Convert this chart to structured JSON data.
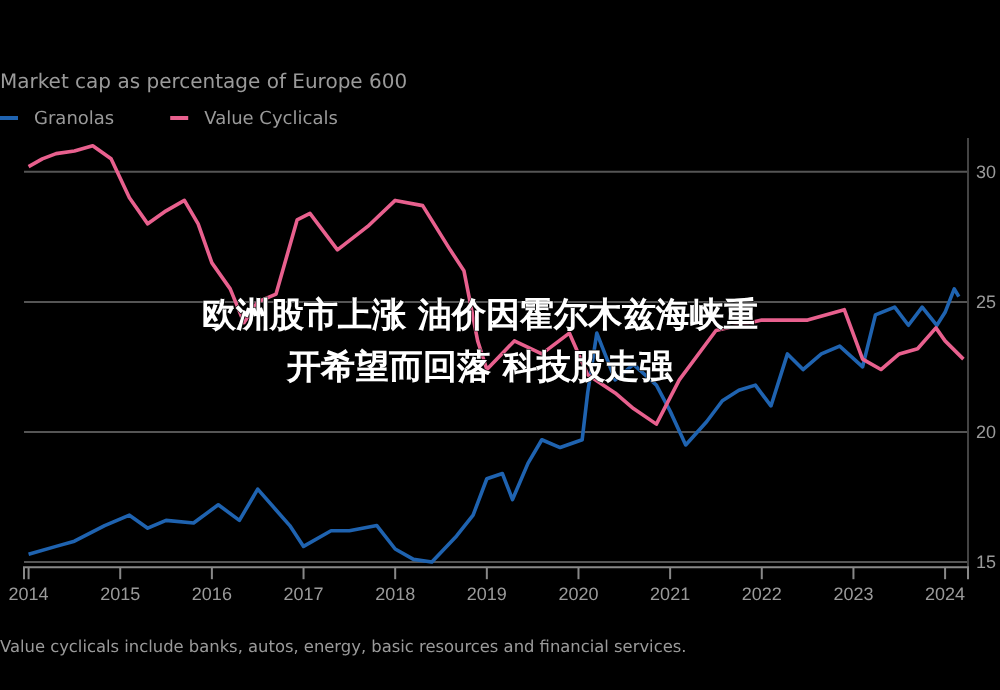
{
  "chart_data": {
    "type": "line",
    "title": "Market cap as percentage of Europe 600",
    "annotations": [
      "欧洲股市上涨 油价因霍尔木兹海峡重开希望而回落 科技股走强",
      "Value cyclicals include banks, autos, energy, basic resources and financial services."
    ],
    "series": [
      {
        "name": "Granolas",
        "color": "#1f63b0",
        "x": [
          2014.0,
          2014.3,
          2014.5,
          2014.83,
          2015.1,
          2015.3,
          2015.5,
          2015.8,
          2016.07,
          2016.3,
          2016.5,
          2016.7,
          2016.85,
          2017.0,
          2017.3,
          2017.5,
          2017.8,
          2018.0,
          2018.2,
          2018.4,
          2018.67,
          2018.85,
          2019.0,
          2019.17,
          2019.28,
          2019.45,
          2019.6,
          2019.8,
          2020.04,
          2020.1,
          2020.2,
          2020.4,
          2020.6,
          2020.85,
          2021.0,
          2021.17,
          2021.4,
          2021.57,
          2021.75,
          2021.93,
          2022.1,
          2022.28,
          2022.45,
          2022.65,
          2022.85,
          2023.1,
          2023.24,
          2023.45,
          2023.6,
          2023.75,
          2023.91,
          2024.0,
          2024.1,
          2024.15
        ],
        "values": [
          15.3,
          15.6,
          15.8,
          16.4,
          16.8,
          16.3,
          16.6,
          16.5,
          17.2,
          16.6,
          17.8,
          17.0,
          16.4,
          15.6,
          16.2,
          16.2,
          16.4,
          15.5,
          15.1,
          15.0,
          16.0,
          16.8,
          18.2,
          18.4,
          17.4,
          18.8,
          19.7,
          19.4,
          19.7,
          21.5,
          23.8,
          22.0,
          22.6,
          21.8,
          20.8,
          19.5,
          20.4,
          21.2,
          21.6,
          21.8,
          21.0,
          23.0,
          22.4,
          23.0,
          23.3,
          22.5,
          24.5,
          24.8,
          24.1,
          24.8,
          24.1,
          24.6,
          25.5,
          25.2
        ]
      },
      {
        "name": "Value Cyclicals",
        "color": "#e8608e",
        "x": [
          2014.0,
          2014.15,
          2014.3,
          2014.5,
          2014.7,
          2014.9,
          2015.1,
          2015.3,
          2015.5,
          2015.7,
          2015.85,
          2016.0,
          2016.2,
          2016.35,
          2016.5,
          2016.7,
          2016.93,
          2017.07,
          2017.37,
          2017.7,
          2018.0,
          2018.3,
          2018.6,
          2018.75,
          2018.9,
          2019.0,
          2019.3,
          2019.6,
          2019.9,
          2020.1,
          2020.4,
          2020.6,
          2020.85,
          2021.1,
          2021.5,
          2022.0,
          2022.5,
          2022.9,
          2023.1,
          2023.3,
          2023.5,
          2023.7,
          2023.9,
          2024.0,
          2024.2
        ],
        "values": [
          30.2,
          30.5,
          30.7,
          30.8,
          31.0,
          30.5,
          29.0,
          28.0,
          28.5,
          28.9,
          28.0,
          26.5,
          25.5,
          24.2,
          25.0,
          25.3,
          28.15,
          28.4,
          27.0,
          27.9,
          28.9,
          28.7,
          27.0,
          26.2,
          23.5,
          22.4,
          23.5,
          23.0,
          23.8,
          22.2,
          21.5,
          20.9,
          20.3,
          22.0,
          23.9,
          24.3,
          24.3,
          24.7,
          22.8,
          22.4,
          23.0,
          23.2,
          24.0,
          23.5,
          22.8
        ]
      }
    ],
    "xlim": [
      2013.95,
      2024.25
    ],
    "xticks": [
      2014,
      2015,
      2016,
      2017,
      2018,
      2019,
      2020,
      2021,
      2022,
      2023,
      2024
    ],
    "ylim": [
      14.8,
      31.3
    ],
    "yticks": [
      15,
      20,
      25,
      30
    ],
    "grid": "y",
    "legend": "top left",
    "line_style": "solid",
    "marker": "none"
  }
}
